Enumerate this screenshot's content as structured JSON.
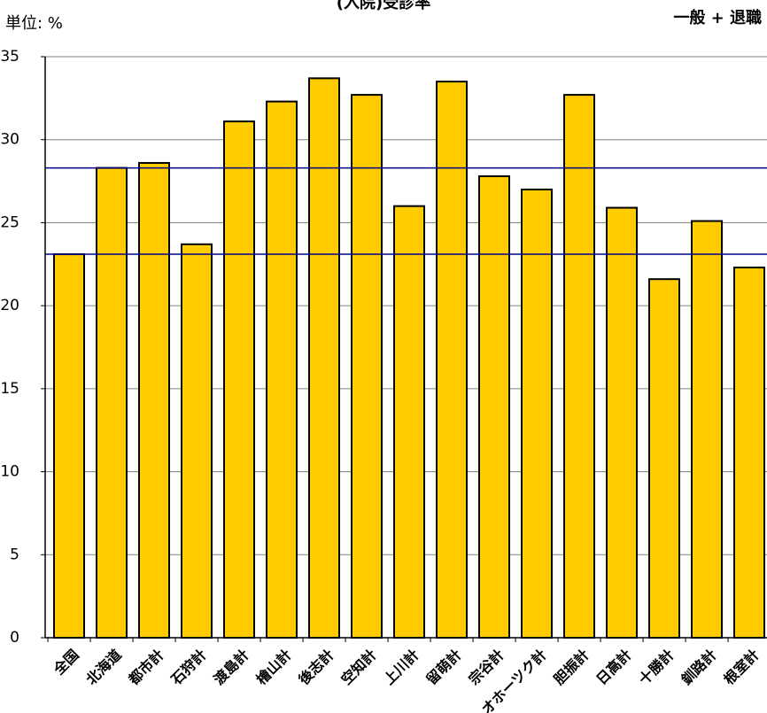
{
  "chart_data": {
    "type": "bar",
    "title": "(入院)受診率",
    "unit_label": "単位: %",
    "subtitle": "一般 + 退職",
    "categories": [
      "全国",
      "北海道",
      "都市計",
      "石狩計",
      "渡島計",
      "檜山計",
      "後志計",
      "空知計",
      "上川計",
      "留萌計",
      "宗谷計",
      "オホーツク計",
      "胆振計",
      "日高計",
      "十勝計",
      "釧路計",
      "根室計"
    ],
    "values": [
      23.1,
      28.3,
      28.6,
      23.7,
      31.1,
      32.3,
      33.7,
      32.7,
      26.0,
      33.5,
      27.8,
      27.0,
      32.7,
      25.9,
      21.6,
      25.1,
      22.3
    ],
    "yticks": [
      "0",
      "5",
      "10",
      "15",
      "20",
      "25",
      "30",
      "35"
    ],
    "ylim": [
      0,
      35
    ],
    "reference_lines": [
      23.1,
      28.3
    ],
    "grid": true,
    "colors": {
      "bar_fill": "#FFCC00",
      "bar_stroke": "#000000",
      "reference_line": "#00008B",
      "grid": "#808080"
    }
  }
}
